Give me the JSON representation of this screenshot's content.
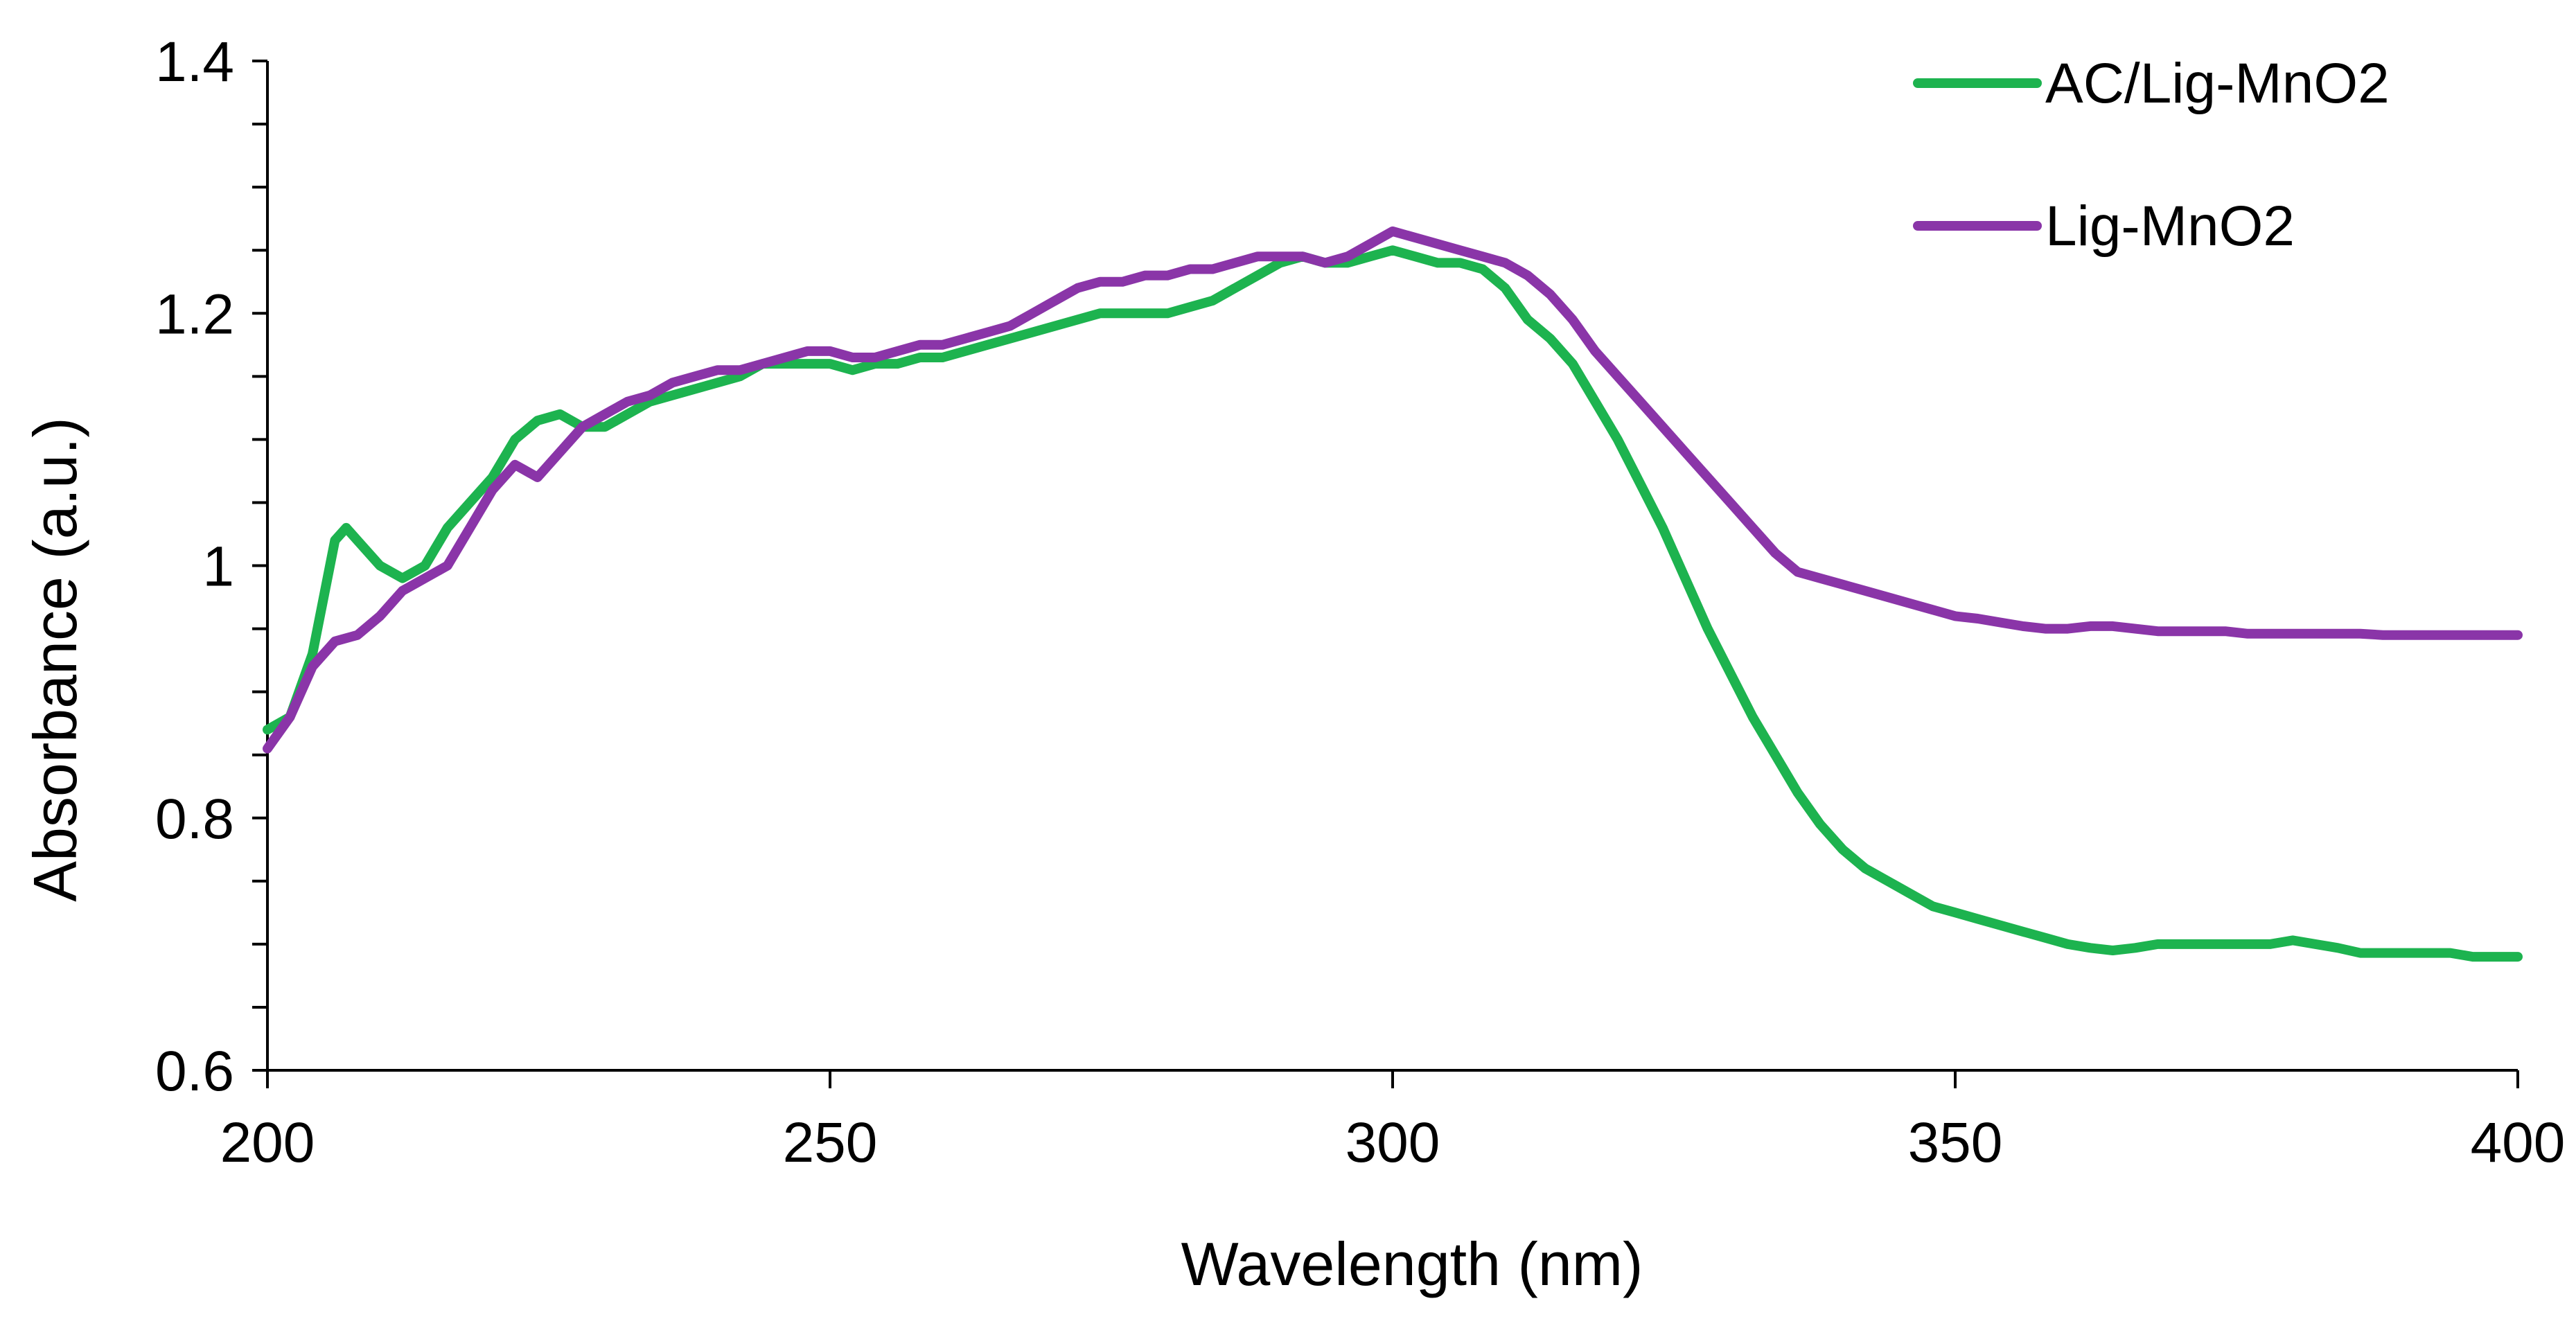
{
  "chart_data": {
    "type": "line",
    "title": "",
    "xlabel": "Wavelength (nm)",
    "ylabel": "Absorbance (a.u.)",
    "xlim": [
      200,
      400
    ],
    "ylim": [
      0.6,
      1.4
    ],
    "x_ticks": [
      200,
      250,
      300,
      350,
      400
    ],
    "x_tick_labels": [
      "200",
      "250",
      "300",
      "350",
      "400"
    ],
    "y_ticks": [
      0.6,
      0.8,
      1.0,
      1.2,
      1.4
    ],
    "y_tick_labels": [
      "0.6",
      "0.8",
      "1",
      "1.2",
      "1.4"
    ],
    "y_minor_step": 0.05,
    "grid": false,
    "legend_position": "top-right",
    "series": [
      {
        "name": "AC/Lig-MnO2",
        "color": "#1db34f",
        "x": [
          200,
          202,
          204,
          206,
          207,
          208,
          210,
          212,
          214,
          216,
          218,
          220,
          222,
          224,
          226,
          228,
          230,
          232,
          234,
          236,
          238,
          240,
          242,
          244,
          246,
          248,
          250,
          252,
          254,
          256,
          258,
          260,
          262,
          264,
          266,
          268,
          270,
          272,
          274,
          276,
          278,
          280,
          282,
          284,
          286,
          288,
          290,
          292,
          294,
          296,
          298,
          300,
          302,
          304,
          306,
          308,
          310,
          312,
          314,
          316,
          318,
          320,
          322,
          324,
          326,
          328,
          330,
          332,
          334,
          336,
          338,
          340,
          342,
          344,
          346,
          348,
          350,
          352,
          354,
          356,
          358,
          360,
          362,
          364,
          366,
          368,
          370,
          372,
          374,
          376,
          378,
          380,
          382,
          384,
          386,
          388,
          390,
          392,
          394,
          396,
          398,
          400
        ],
        "values": [
          0.87,
          0.88,
          0.93,
          1.02,
          1.03,
          1.02,
          1.0,
          0.99,
          1.0,
          1.03,
          1.05,
          1.07,
          1.1,
          1.115,
          1.12,
          1.11,
          1.11,
          1.12,
          1.13,
          1.135,
          1.14,
          1.145,
          1.15,
          1.16,
          1.16,
          1.16,
          1.16,
          1.155,
          1.16,
          1.16,
          1.165,
          1.165,
          1.17,
          1.175,
          1.18,
          1.185,
          1.19,
          1.195,
          1.2,
          1.2,
          1.2,
          1.2,
          1.205,
          1.21,
          1.22,
          1.23,
          1.24,
          1.245,
          1.24,
          1.24,
          1.245,
          1.25,
          1.245,
          1.24,
          1.24,
          1.235,
          1.22,
          1.195,
          1.18,
          1.16,
          1.13,
          1.1,
          1.065,
          1.03,
          0.99,
          0.95,
          0.915,
          0.88,
          0.85,
          0.82,
          0.795,
          0.775,
          0.76,
          0.75,
          0.74,
          0.73,
          0.725,
          0.72,
          0.715,
          0.71,
          0.705,
          0.7,
          0.697,
          0.695,
          0.697,
          0.7,
          0.7,
          0.7,
          0.7,
          0.7,
          0.7,
          0.703,
          0.7,
          0.697,
          0.693,
          0.693,
          0.693,
          0.693,
          0.693,
          0.69,
          0.69,
          0.69
        ]
      },
      {
        "name": "Lig-MnO2",
        "color": "#8a35a8",
        "x": [
          200,
          202,
          204,
          206,
          208,
          210,
          212,
          214,
          216,
          218,
          220,
          222,
          224,
          226,
          228,
          230,
          232,
          234,
          236,
          238,
          240,
          242,
          244,
          246,
          248,
          250,
          252,
          254,
          256,
          258,
          260,
          262,
          264,
          266,
          268,
          270,
          272,
          274,
          276,
          278,
          280,
          282,
          284,
          286,
          288,
          290,
          292,
          294,
          296,
          298,
          300,
          302,
          304,
          306,
          308,
          310,
          312,
          314,
          316,
          318,
          320,
          322,
          324,
          326,
          328,
          330,
          332,
          334,
          336,
          338,
          340,
          342,
          344,
          346,
          348,
          350,
          352,
          354,
          356,
          358,
          360,
          362,
          364,
          366,
          368,
          370,
          372,
          374,
          376,
          378,
          380,
          382,
          384,
          386,
          388,
          390,
          392,
          394,
          396,
          398,
          400
        ],
        "values": [
          0.855,
          0.88,
          0.92,
          0.94,
          0.945,
          0.96,
          0.98,
          0.99,
          1.0,
          1.03,
          1.06,
          1.08,
          1.07,
          1.09,
          1.11,
          1.12,
          1.13,
          1.135,
          1.145,
          1.15,
          1.155,
          1.155,
          1.16,
          1.165,
          1.17,
          1.17,
          1.165,
          1.165,
          1.17,
          1.175,
          1.175,
          1.18,
          1.185,
          1.19,
          1.2,
          1.21,
          1.22,
          1.225,
          1.225,
          1.23,
          1.23,
          1.235,
          1.235,
          1.24,
          1.245,
          1.245,
          1.245,
          1.24,
          1.245,
          1.255,
          1.265,
          1.26,
          1.255,
          1.25,
          1.245,
          1.24,
          1.23,
          1.215,
          1.195,
          1.17,
          1.15,
          1.13,
          1.11,
          1.09,
          1.07,
          1.05,
          1.03,
          1.01,
          0.995,
          0.99,
          0.985,
          0.98,
          0.975,
          0.97,
          0.965,
          0.96,
          0.958,
          0.955,
          0.952,
          0.95,
          0.95,
          0.952,
          0.952,
          0.95,
          0.948,
          0.948,
          0.948,
          0.948,
          0.946,
          0.946,
          0.946,
          0.946,
          0.946,
          0.946,
          0.945,
          0.945,
          0.945,
          0.945,
          0.945,
          0.945,
          0.945
        ]
      }
    ]
  }
}
